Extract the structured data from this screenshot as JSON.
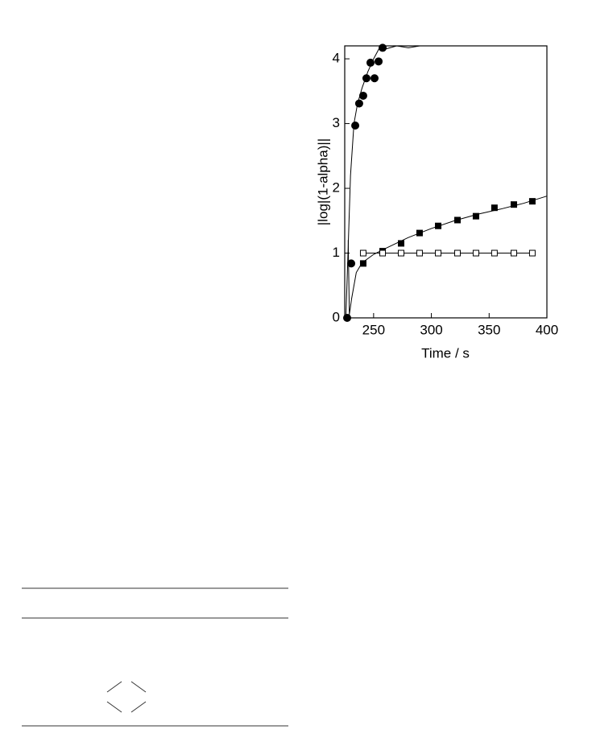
{
  "chart_data": {
    "type": "scatter",
    "x_label": "Time / s",
    "y_label": "|log|(1-alpha)||",
    "xlim": [
      225,
      400
    ],
    "ylim": [
      0,
      4.2
    ],
    "xticks": [
      250,
      300,
      350,
      400
    ],
    "yticks": [
      0,
      1,
      2,
      3,
      4
    ],
    "series": [
      {
        "color": "#000000",
        "marker": "none",
        "line": true,
        "x": [
          226,
          228,
          230,
          233,
          236,
          240,
          245,
          250,
          256,
          260,
          270,
          280,
          290
        ],
        "values": [
          0,
          1.1,
          2.2,
          3.0,
          3.3,
          3.55,
          3.8,
          4.0,
          4.2,
          4.15,
          4.2,
          4.17,
          4.2
        ]
      },
      {
        "color": "#000000",
        "marker": "none",
        "line": true,
        "x": [
          228,
          229,
          231,
          235,
          240,
          250,
          260,
          280,
          300,
          320,
          340,
          360,
          380,
          400
        ],
        "values": [
          1.2,
          0.05,
          0.3,
          0.7,
          0.85,
          0.98,
          1.07,
          1.24,
          1.38,
          1.5,
          1.6,
          1.68,
          1.77,
          1.88
        ]
      },
      {
        "color": "#000000",
        "marker": "circle",
        "filled": true,
        "line": false,
        "x": [
          227.1,
          230.6,
          234.1,
          237.5,
          241,
          243.8,
          247.3,
          250.8,
          254.3,
          257.8
        ],
        "values": [
          0,
          0.84,
          2.97,
          3.31,
          3.43,
          3.7,
          3.94,
          3.7,
          3.96,
          4.17
        ]
      },
      {
        "color": "#000000",
        "marker": "square",
        "filled": true,
        "line": false,
        "x": [
          241,
          257.8,
          273.8,
          289.8,
          305.9,
          322.6,
          338.6,
          354.6,
          371.4,
          387.4
        ],
        "values": [
          0.84,
          1.03,
          1.15,
          1.31,
          1.42,
          1.51,
          1.57,
          1.7,
          1.75,
          1.8
        ]
      },
      {
        "color": "#000000",
        "marker": "square",
        "filled": false,
        "line": true,
        "x": [
          241,
          257.8,
          273.8,
          289.8,
          305.9,
          322.6,
          338.6,
          354.6,
          371.4,
          387.4
        ],
        "values": [
          1,
          1,
          1,
          1,
          1,
          1,
          1,
          1,
          1,
          1
        ]
      }
    ]
  }
}
